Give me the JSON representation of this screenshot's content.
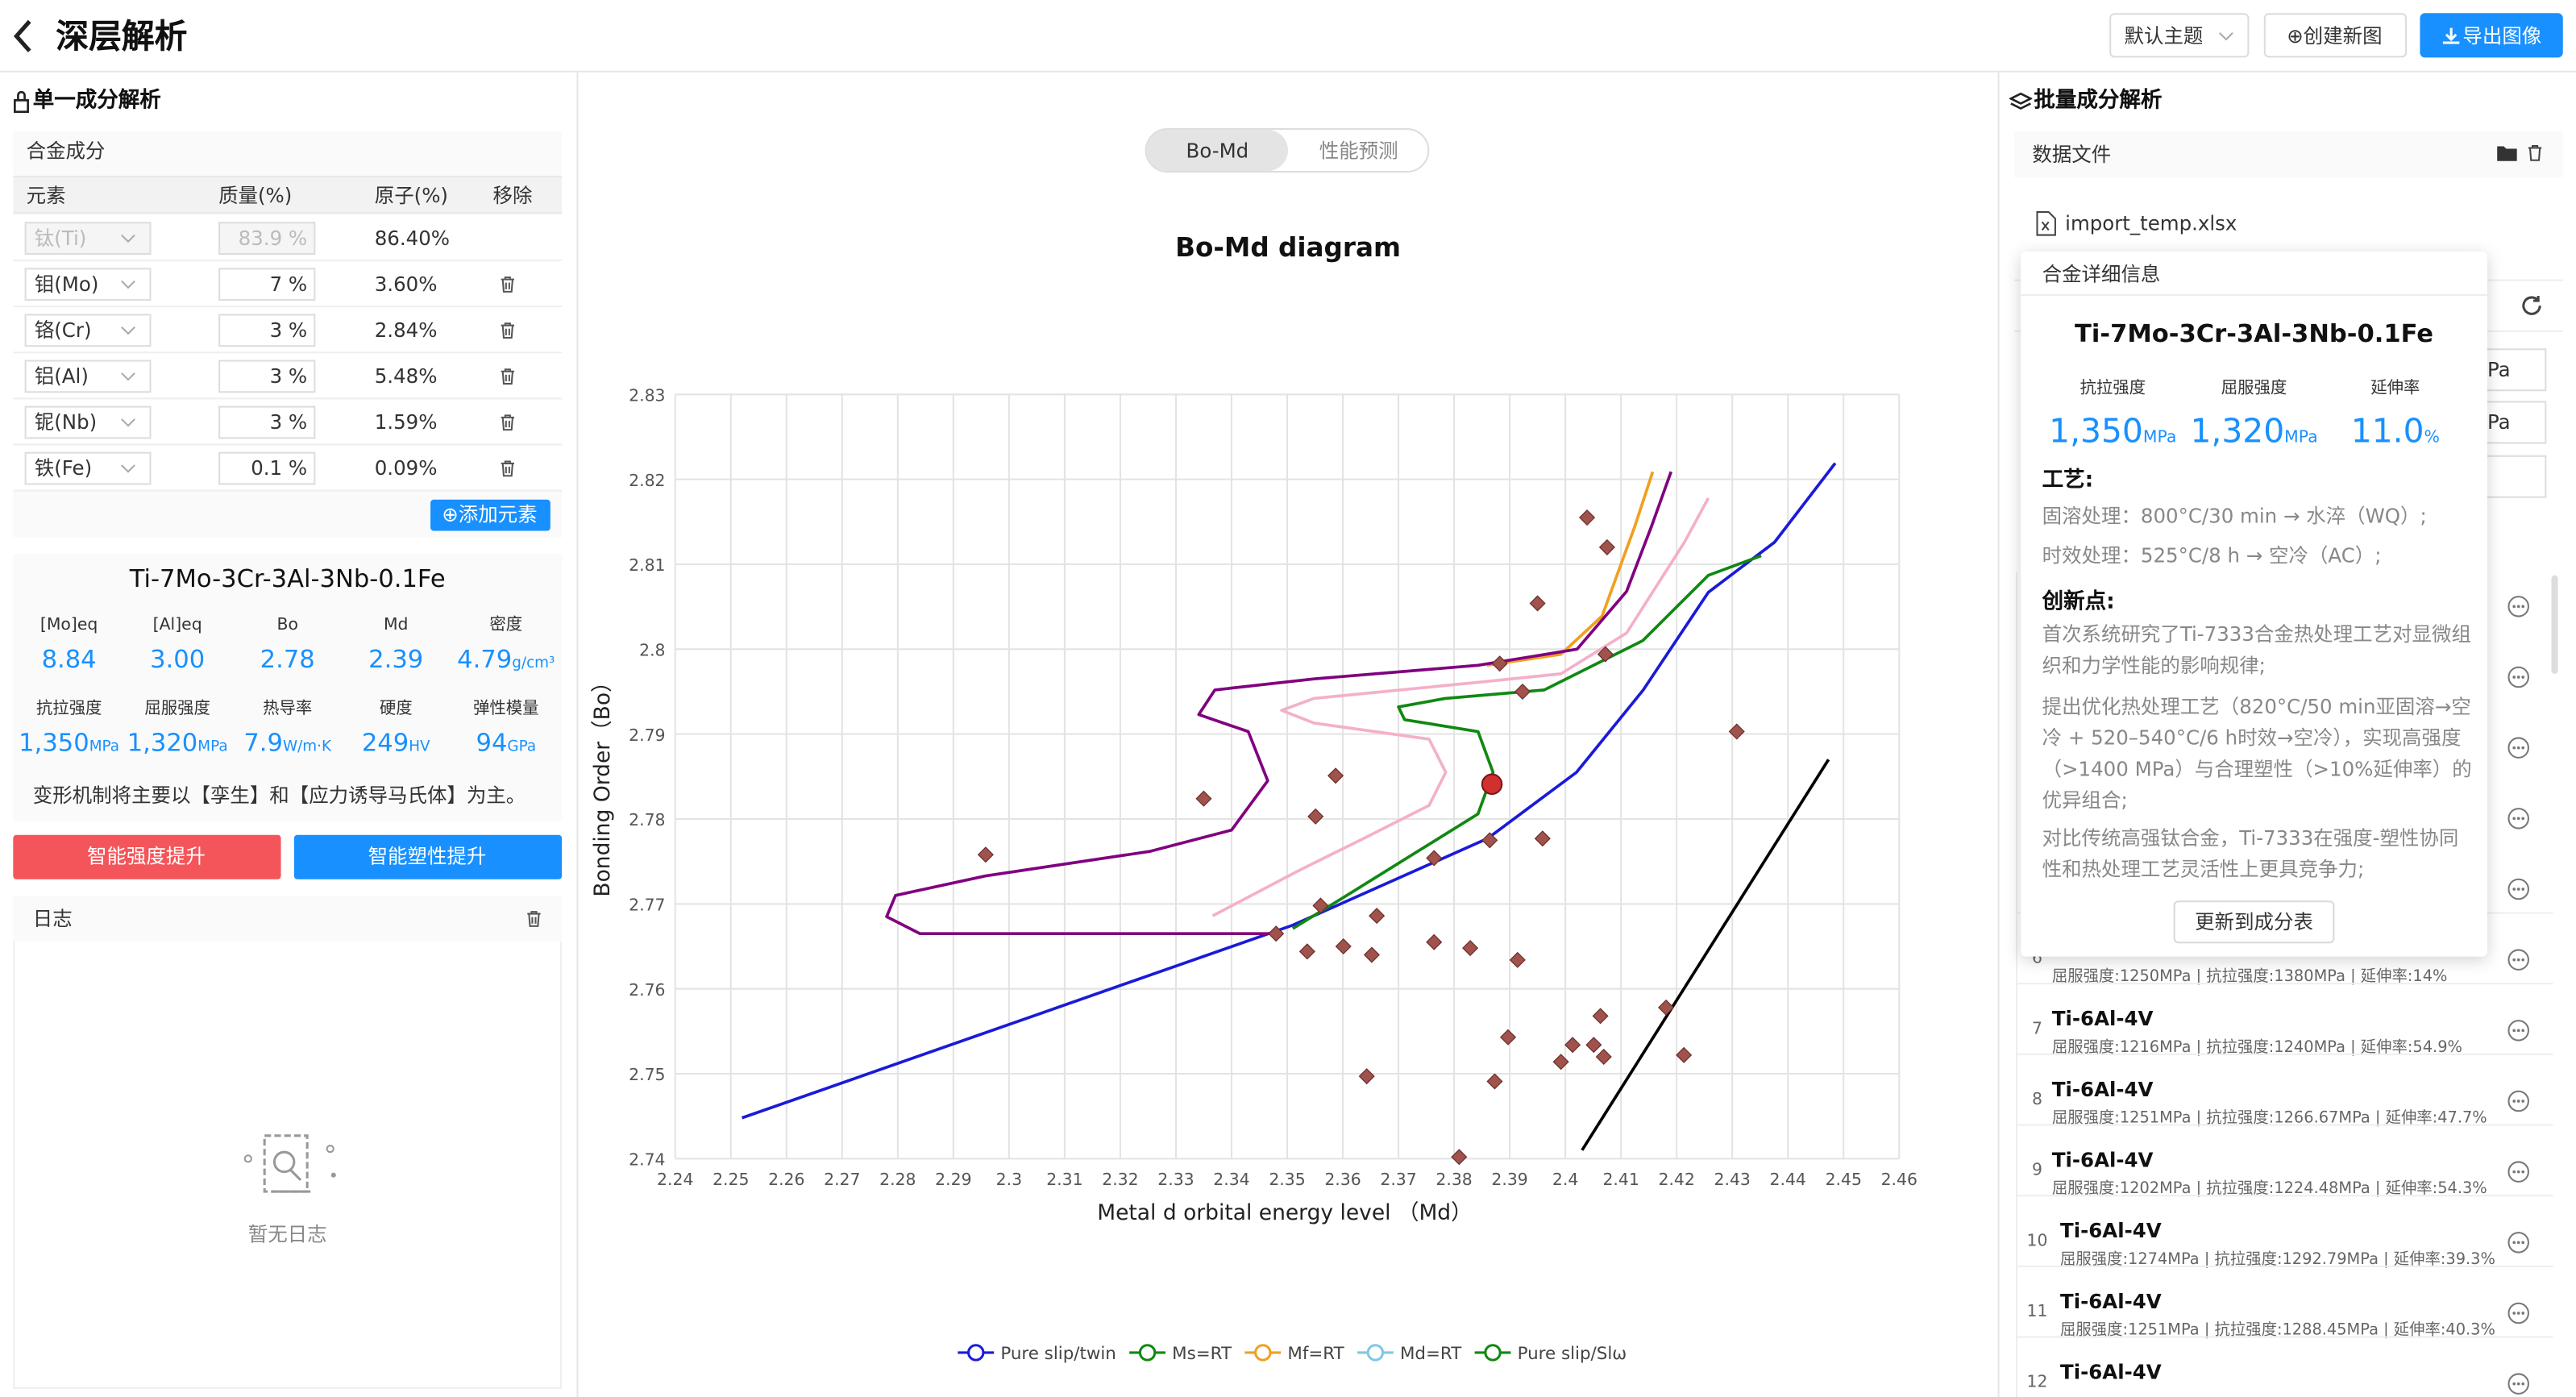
{
  "header": {
    "title": "深层解析",
    "theme": "默认主题",
    "new_chart": "⊕创建新图",
    "export": "导出图像"
  },
  "left": {
    "section_title": "单一成分解析",
    "composition": {
      "title": "合金成分",
      "columns": [
        "元素",
        "质量(%)",
        "原子(%)",
        "移除"
      ],
      "rows": [
        {
          "element": "钛(Ti)",
          "mass": "83.9 %",
          "atomic": "86.40%",
          "disabled": true
        },
        {
          "element": "钼(Mo)",
          "mass": "7 %",
          "atomic": "3.60%"
        },
        {
          "element": "铬(Cr)",
          "mass": "3 %",
          "atomic": "2.84%"
        },
        {
          "element": "铝(Al)",
          "mass": "3 %",
          "atomic": "5.48%"
        },
        {
          "element": "铌(Nb)",
          "mass": "3 %",
          "atomic": "1.59%"
        },
        {
          "element": "铁(Fe)",
          "mass": "0.1 %",
          "atomic": "0.09%"
        }
      ],
      "add_button": "⊕添加元素"
    },
    "alloy": {
      "name": "Ti-7Mo-3Cr-3Al-3Nb-0.1Fe",
      "params": [
        {
          "label": "[Mo]eq",
          "value": "8.84"
        },
        {
          "label": "[Al]eq",
          "value": "3.00"
        },
        {
          "label": "Bo",
          "value": "2.78"
        },
        {
          "label": "Md",
          "value": "2.39"
        },
        {
          "label": "密度",
          "value": "4.79",
          "unit": "g/cm³"
        }
      ],
      "properties": [
        {
          "label": "抗拉强度",
          "value": "1,350",
          "unit": "MPa"
        },
        {
          "label": "屈服强度",
          "value": "1,320",
          "unit": "MPa"
        },
        {
          "label": "热导率",
          "value": "7.9",
          "unit": "W/m·K"
        },
        {
          "label": "硬度",
          "value": "249",
          "unit": "HV"
        },
        {
          "label": "弹性模量",
          "value": "94",
          "unit": "GPa"
        }
      ],
      "mechanism": "变形机制将主要以【孪生】和【应力诱导马氏体】为主。"
    },
    "buttons": [
      "智能强度提升",
      "智能塑性提升"
    ],
    "log": {
      "title": "日志",
      "empty": "暂无日志"
    }
  },
  "center": {
    "tabs": [
      "Bo-Md",
      "性能预测"
    ],
    "active_tab": 0
  },
  "chart_data": {
    "type": "line",
    "title": "Bo-Md diagram",
    "x_label": "Metal d orbital energy level （Md）",
    "y_label": "Bonding Order（Bo）",
    "xlim": [
      2.24,
      2.46
    ],
    "ylim": [
      2.74,
      2.83
    ],
    "xticks": [
      2.24,
      2.25,
      2.26,
      2.27,
      2.28,
      2.29,
      2.3,
      2.31,
      2.32,
      2.33,
      2.34,
      2.35,
      2.36,
      2.37,
      2.38,
      2.39,
      2.4,
      2.41,
      2.42,
      2.43,
      2.44,
      2.45,
      2.46
    ],
    "yticks": [
      2.74,
      2.75,
      2.76,
      2.77,
      2.78,
      2.79,
      2.8,
      2.81,
      2.82,
      2.83
    ],
    "grid": true,
    "series": [
      {
        "name": "Pure slip/twin",
        "color": "#1a1ad8",
        "x": [
          2.252,
          2.351,
          2.386,
          2.402,
          2.414,
          2.4257,
          2.4376,
          2.4485
        ],
        "values": [
          2.7448,
          2.7675,
          2.7777,
          2.7855,
          2.7952,
          2.8067,
          2.8126,
          2.8219
        ]
      },
      {
        "name": "Ms=RT",
        "color": "#118811",
        "x": [
          2.351,
          2.3607,
          2.3725,
          2.3843,
          2.387,
          2.3843,
          2.3711,
          2.37,
          2.3784,
          2.3962,
          2.4139,
          2.4257,
          2.4352
        ],
        "values": [
          2.7671,
          2.771,
          2.7758,
          2.7806,
          2.7855,
          2.7903,
          2.7917,
          2.7932,
          2.7942,
          2.7952,
          2.801,
          2.8087,
          2.811
        ]
      },
      {
        "name": "Mf=RT",
        "color": "#f0a020",
        "x": [
          2.3859,
          2.3992,
          2.4066,
          2.4125,
          2.4157
        ],
        "values": [
          2.7981,
          2.7994,
          2.8039,
          2.8145,
          2.8209
        ]
      },
      {
        "name": "Md=RT",
        "color": "#800080",
        "legend_color": "#7ec8e3",
        "x": [
          2.348,
          2.284,
          2.278,
          2.2796,
          2.2958,
          2.3254,
          2.34,
          2.3465,
          2.343,
          2.3341,
          2.337,
          2.3548,
          2.3843,
          2.4021,
          2.411,
          2.4155,
          2.419
        ],
        "values": [
          2.7665,
          2.7665,
          2.7685,
          2.771,
          2.7733,
          2.7762,
          2.7787,
          2.7845,
          2.7903,
          2.7923,
          2.7952,
          2.7965,
          2.7981,
          2.8,
          2.8068,
          2.8145,
          2.8209
        ]
      },
      {
        "name": "Pure slip/Slω",
        "color": "#f4b0c8",
        "legend_color": "#118811",
        "x": [
          2.3366,
          2.352,
          2.3637,
          2.3755,
          2.3785,
          2.3755,
          2.3548,
          2.349,
          2.3548,
          2.3843,
          2.3992,
          2.411,
          2.4214,
          2.4257
        ],
        "values": [
          2.7686,
          2.7739,
          2.7777,
          2.7816,
          2.7855,
          2.7894,
          2.7913,
          2.7928,
          2.7942,
          2.7961,
          2.7971,
          2.8019,
          2.8126,
          2.8178
        ]
      },
      {
        "color": "#000000",
        "x": [
          2.403,
          2.4473
        ],
        "values": [
          2.741,
          2.787
        ]
      }
    ],
    "points": {
      "color": "#a0524d",
      "x": [
        2.2958,
        2.335,
        2.3551,
        2.3587,
        2.356,
        2.348,
        2.3536,
        2.3601,
        2.3661,
        2.3652,
        2.3643,
        2.3764,
        2.3764,
        2.3829,
        2.3864,
        2.3882,
        2.3923,
        2.395,
        2.3959,
        2.3914,
        2.3897,
        2.3873,
        2.3809,
        2.3992,
        2.4013,
        2.4051,
        2.4063,
        2.4069,
        2.4039,
        2.4075,
        2.4072,
        2.4181,
        2.4213,
        2.4308
      ],
      "y": [
        2.7758,
        2.7824,
        2.7803,
        2.7851,
        2.7698,
        2.7665,
        2.7644,
        2.765,
        2.7686,
        2.764,
        2.7497,
        2.7754,
        2.7655,
        2.7648,
        2.7775,
        2.7983,
        2.795,
        2.8054,
        2.7777,
        2.7634,
        2.7543,
        2.7491,
        2.7402,
        2.7514,
        2.7534,
        2.7534,
        2.7568,
        2.752,
        2.8155,
        2.812,
        2.7994,
        2.7578,
        2.7522,
        2.7903
      ]
    },
    "highlight": {
      "color": "#d03030",
      "x": 2.3868,
      "y": 2.7841
    }
  },
  "right": {
    "section_title": "批量成分解析",
    "data_file": {
      "title": "数据文件",
      "file": "import_temp.xlsx"
    },
    "behind_popup": [
      "Pa",
      "Pa"
    ],
    "popup": {
      "title": "合金详细信息",
      "name": "Ti-7Mo-3Cr-3Al-3Nb-0.1Fe",
      "metrics": [
        {
          "label": "抗拉强度",
          "value": "1,350",
          "unit": "MPa"
        },
        {
          "label": "屈服强度",
          "value": "1,320",
          "unit": "MPa"
        },
        {
          "label": "延伸率",
          "value": "11.0",
          "unit": "%"
        }
      ],
      "process_title": "工艺:",
      "process": [
        "固溶处理：800°C/30 min → 水淬（WQ）;",
        "时效处理：525°C/8 h → 空冷（AC）;"
      ],
      "innovation_title": "创新点:",
      "innovation": [
        "首次系统研究了Ti-7333合金热处理工艺对显微组织和力学性能的影响规律;",
        "提出优化热处理工艺（820°C/50 min亚固溶→空冷 + 520–540°C/6 h时效→空冷），实现高强度（>1400 MPa）与合理塑性（>10%延伸率）的优异组合;",
        "对比传统高强钛合金，Ti-7333在强度-塑性协同性和热处理工艺灵活性上更具竞争力;"
      ],
      "button": "更新到成分表"
    },
    "items": [
      {
        "index": "6",
        "desc": "屈服强度:1250MPa | 抗拉强度:1380MPa | 延伸率:14%"
      },
      {
        "index": "7",
        "name": "Ti-6Al-4V",
        "desc": "屈服强度:1216MPa | 抗拉强度:1240MPa | 延伸率:54.9%"
      },
      {
        "index": "8",
        "name": "Ti-6Al-4V",
        "desc": "屈服强度:1251MPa | 抗拉强度:1266.67MPa | 延伸率:47.7%"
      },
      {
        "index": "9",
        "name": "Ti-6Al-4V",
        "desc": "屈服强度:1202MPa | 抗拉强度:1224.48MPa | 延伸率:54.3%"
      },
      {
        "index": "10",
        "name": "Ti-6Al-4V",
        "desc": "屈服强度:1274MPa | 抗拉强度:1292.79MPa | 延伸率:39.3%"
      },
      {
        "index": "11",
        "name": "Ti-6Al-4V",
        "desc": "屈服强度:1251MPa | 抗拉强度:1288.45MPa | 延伸率:40.3%"
      },
      {
        "index": "12",
        "name": "Ti-6Al-4V"
      }
    ]
  }
}
